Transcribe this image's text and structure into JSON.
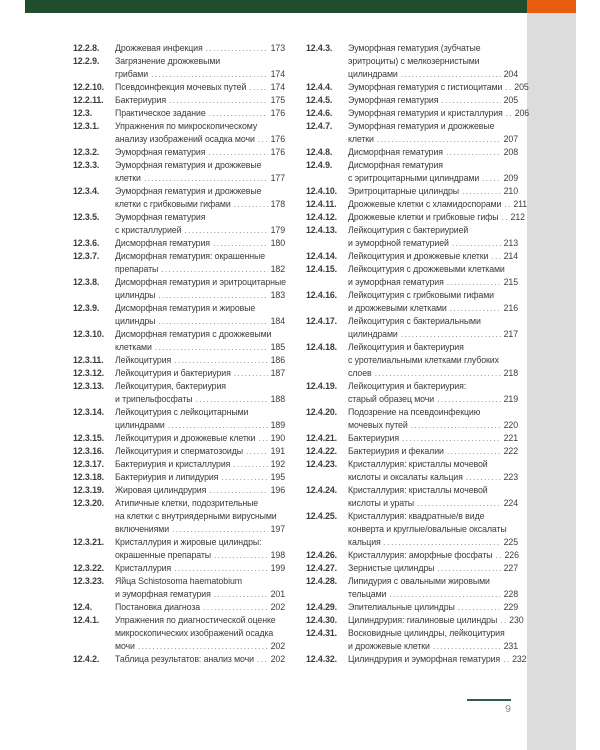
{
  "footer": {
    "page_number": "9"
  },
  "colors": {
    "header_green": "#1f4d2e",
    "accent_orange": "#e85e10",
    "side_strip_gray": "#dcdcdd",
    "text": "#3c3c3c",
    "footer_rule_green": "#2f5d4c"
  },
  "toc": {
    "columns": [
      {
        "entries": [
          {
            "num": "12.2.8.",
            "lines": [
              "Дрожжевая инфекция"
            ],
            "page": "173"
          },
          {
            "num": "12.2.9.",
            "lines": [
              "Загрязнение дрожжевыми",
              "грибами"
            ],
            "page": "174"
          },
          {
            "num": "12.2.10.",
            "lines": [
              "Псевдоинфекция мочевых путей"
            ],
            "page": "174"
          },
          {
            "num": "12.2.11.",
            "lines": [
              "Бактериурия"
            ],
            "page": "175"
          },
          {
            "num": "12.3.",
            "lines": [
              "Практическое задание"
            ],
            "page": "176"
          },
          {
            "num": "12.3.1.",
            "lines": [
              "Упражнения по микроскопическому",
              "анализу изображений осадка мочи"
            ],
            "page": "176"
          },
          {
            "num": "12.3.2.",
            "lines": [
              "Эуморфная гематурия"
            ],
            "page": "176"
          },
          {
            "num": "12.3.3.",
            "lines": [
              "Эуморфная гематурия и дрожжевые",
              "клетки"
            ],
            "page": "177"
          },
          {
            "num": "12.3.4.",
            "lines": [
              "Эуморфная гематурия и дрожжевые",
              "клетки с грибковыми гифами"
            ],
            "page": "178"
          },
          {
            "num": "12.3.5.",
            "lines": [
              "Эуморфная гематурия",
              "с кристаллурией"
            ],
            "page": "179"
          },
          {
            "num": "12.3.6.",
            "lines": [
              "Дисморфная гематурия"
            ],
            "page": "180"
          },
          {
            "num": "12.3.7.",
            "lines": [
              "Дисморфная гематурия: окрашенные",
              "препараты"
            ],
            "page": "182"
          },
          {
            "num": "12.3.8.",
            "lines": [
              "Дисморфная гематурия и эритроцитарные",
              "цилиндры"
            ],
            "page": "183"
          },
          {
            "num": "12.3.9.",
            "lines": [
              "Дисморфная гематурия и жировые",
              "цилиндры"
            ],
            "page": "184"
          },
          {
            "num": "12.3.10.",
            "lines": [
              "Дисморфная гематурия с дрожжевыми",
              "клетками"
            ],
            "page": "185"
          },
          {
            "num": "12.3.11.",
            "lines": [
              "Лейкоцитурия"
            ],
            "page": "186"
          },
          {
            "num": "12.3.12.",
            "lines": [
              "Лейкоцитурия и бактериурия"
            ],
            "page": "187"
          },
          {
            "num": "12.3.13.",
            "lines": [
              "Лейкоцитурия, бактериурия",
              "и трипельфосфаты"
            ],
            "page": "188"
          },
          {
            "num": "12.3.14.",
            "lines": [
              "Лейкоцитурия с лейкоцитарными",
              "цилиндрами"
            ],
            "page": "189"
          },
          {
            "num": "12.3.15.",
            "lines": [
              "Лейкоцитурия и дрожжевые клетки"
            ],
            "page": "190"
          },
          {
            "num": "12.3.16.",
            "lines": [
              "Лейкоцитурия и сперматозоиды"
            ],
            "page": "191"
          },
          {
            "num": "12.3.17.",
            "lines": [
              "Бактериурия и кристаллурия"
            ],
            "page": "192"
          },
          {
            "num": "12.3.18.",
            "lines": [
              "Бактериурия и липидурия"
            ],
            "page": "195"
          },
          {
            "num": "12.3.19.",
            "lines": [
              "Жировая цилиндрурия"
            ],
            "page": "196"
          },
          {
            "num": "12.3.20.",
            "lines": [
              "Атипичные клетки, подозрительные",
              "на клетки с внутриядерными вирусными",
              "включениями"
            ],
            "page": "197"
          },
          {
            "num": "12.3.21.",
            "lines": [
              "Кристаллурия и жировые цилиндры:",
              "окрашенные препараты"
            ],
            "page": "198"
          },
          {
            "num": "12.3.22.",
            "lines": [
              "Кристаллурия"
            ],
            "page": "199"
          },
          {
            "num": "12.3.23.",
            "lines": [
              [
                {
                  "t": "Яйца "
                },
                {
                  "t": "Schistosoma haematobium",
                  "i": true
                }
              ],
              "и эуморфная гематурия"
            ],
            "page": "201"
          },
          {
            "num": "12.4.",
            "lines": [
              "Постановка диагноза"
            ],
            "page": "202"
          },
          {
            "num": "12.4.1.",
            "lines": [
              "Упражнения по диагностической оценке",
              "микроскопических изображений осадка",
              "мочи"
            ],
            "page": "202"
          },
          {
            "num": "12.4.2.",
            "lines": [
              "Таблица результатов: анализ мочи"
            ],
            "page": "202"
          }
        ]
      },
      {
        "entries": [
          {
            "num": "12.4.3.",
            "lines": [
              "Эуморфная гематурия (зубчатые",
              "эритроциты) с мелкозернистыми",
              "цилиндрами"
            ],
            "page": "204"
          },
          {
            "num": "12.4.4.",
            "lines": [
              "Эуморфная гематурия с гистиоцитами"
            ],
            "page": "205"
          },
          {
            "num": "12.4.5.",
            "lines": [
              "Эуморфная гематурия"
            ],
            "page": "205"
          },
          {
            "num": "12.4.6.",
            "lines": [
              "Эуморфная гематурия и кристаллурия"
            ],
            "page": "206"
          },
          {
            "num": "12.4.7.",
            "lines": [
              "Эуморфная гематурия и дрожжевые",
              "клетки"
            ],
            "page": "207"
          },
          {
            "num": "12.4.8.",
            "lines": [
              "Дисморфная гематурия"
            ],
            "page": "208"
          },
          {
            "num": "12.4.9.",
            "lines": [
              "Дисморфная гематурия",
              "с эритроцитарными цилиндрами"
            ],
            "page": "209"
          },
          {
            "num": "12.4.10.",
            "lines": [
              "Эритроцитарные цилиндры"
            ],
            "page": "210"
          },
          {
            "num": "12.4.11.",
            "lines": [
              "Дрожжевые клетки с хламидоспорами"
            ],
            "page": "211"
          },
          {
            "num": "12.4.12.",
            "lines": [
              "Дрожжевые клетки и грибковые гифы"
            ],
            "page": "212"
          },
          {
            "num": "12.4.13.",
            "lines": [
              "Лейкоцитурия с бактериурией",
              "и эуморфной гематурией"
            ],
            "page": "213"
          },
          {
            "num": "12.4.14.",
            "lines": [
              "Лейкоцитурия и дрожжевые клетки"
            ],
            "page": "214"
          },
          {
            "num": "12.4.15.",
            "lines": [
              "Лейкоцитурия с дрожжевыми клетками",
              "и эуморфная гематурия"
            ],
            "page": "215"
          },
          {
            "num": "12.4.16.",
            "lines": [
              "Лейкоцитурия с грибковыми гифами",
              "и дрожжевыми клетками"
            ],
            "page": "216"
          },
          {
            "num": "12.4.17.",
            "lines": [
              "Лейкоцитурия с бактериальными",
              "цилиндрами"
            ],
            "page": "217"
          },
          {
            "num": "12.4.18.",
            "lines": [
              "Лейкоцитурия и бактериурия",
              "с уротелиальными клетками глубоких",
              "слоев"
            ],
            "page": "218"
          },
          {
            "num": "12.4.19.",
            "lines": [
              "Лейкоцитурия и бактериурия:",
              "старый образец мочи"
            ],
            "page": "219"
          },
          {
            "num": "12.4.20.",
            "lines": [
              "Подозрение на псевдоинфекцию",
              "мочевых путей"
            ],
            "page": "220"
          },
          {
            "num": "12.4.21.",
            "lines": [
              "Бактериурия"
            ],
            "page": "221"
          },
          {
            "num": "12.4.22.",
            "lines": [
              "Бактериурия и фекалии"
            ],
            "page": "222"
          },
          {
            "num": "12.4.23.",
            "lines": [
              "Кристаллурия: кристаллы мочевой",
              "кислоты и оксалаты кальция"
            ],
            "page": "223"
          },
          {
            "num": "12.4.24.",
            "lines": [
              "Кристаллурия: кристаллы мочевой",
              "кислоты и ураты"
            ],
            "page": "224"
          },
          {
            "num": "12.4.25.",
            "lines": [
              "Кристаллурия: квадратные/в виде",
              "конверта и круглые/овальные оксалаты",
              "кальция"
            ],
            "page": "225"
          },
          {
            "num": "12.4.26.",
            "lines": [
              "Кристаллурия: аморфные фосфаты"
            ],
            "page": "226"
          },
          {
            "num": "12.4.27.",
            "lines": [
              "Зернистые цилиндры"
            ],
            "page": "227"
          },
          {
            "num": "12.4.28.",
            "lines": [
              "Липидурия с овальными жировыми",
              "тельцами"
            ],
            "page": "228"
          },
          {
            "num": "12.4.29.",
            "lines": [
              "Эпителиальные цилиндры"
            ],
            "page": "229"
          },
          {
            "num": "12.4.30.",
            "lines": [
              "Цилиндрурия: гиалиновые цилиндры"
            ],
            "page": "230"
          },
          {
            "num": "12.4.31.",
            "lines": [
              "Восковидные цилиндры, лейкоцитурия",
              "и дрожжевые клетки"
            ],
            "page": "231"
          },
          {
            "num": "12.4.32.",
            "lines": [
              "Цилиндрурия и эуморфная гематурия"
            ],
            "page": "232"
          }
        ]
      }
    ]
  }
}
